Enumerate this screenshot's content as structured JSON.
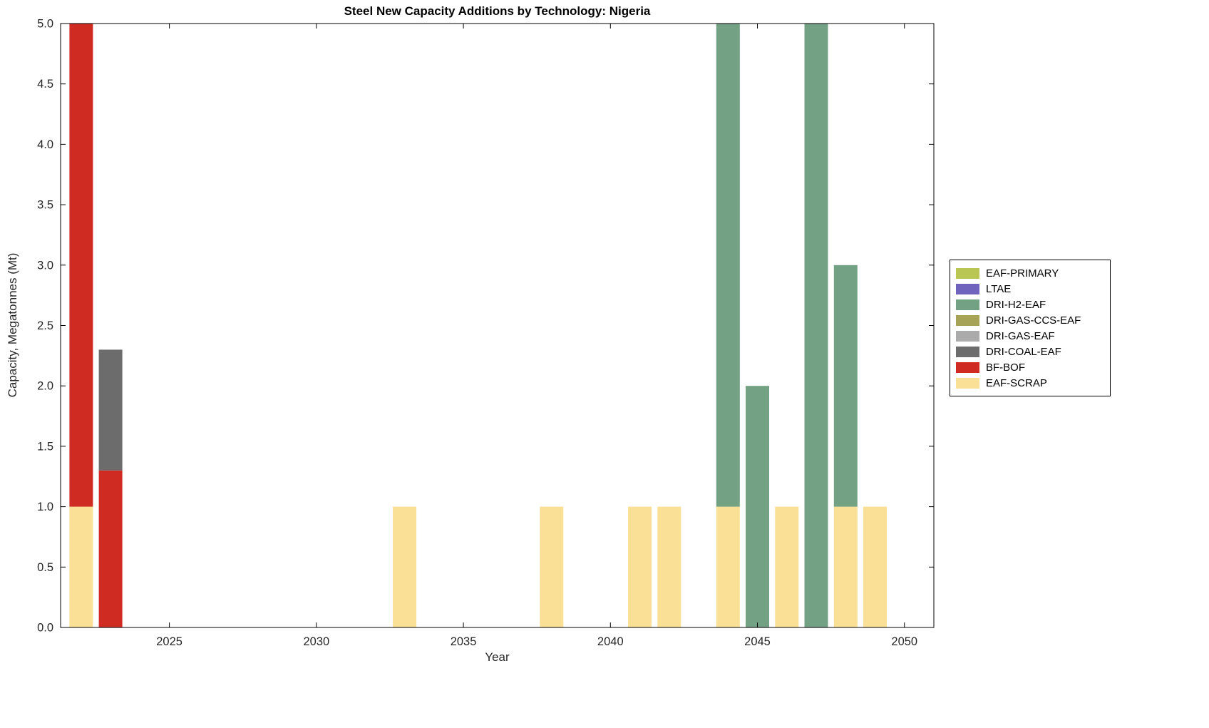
{
  "chart_data": {
    "type": "bar",
    "stacked": true,
    "title": "Steel New Capacity Additions by Technology: Nigeria",
    "xlabel": "Year",
    "ylabel": "Capacity, Megatonnes (Mt)",
    "xlim": [
      2021.3,
      2051.0
    ],
    "ylim": [
      0,
      5
    ],
    "xticks": [
      2025,
      2030,
      2035,
      2040,
      2045,
      2050
    ],
    "yticks": [
      0,
      0.5,
      1.0,
      1.5,
      2.0,
      2.5,
      3.0,
      3.5,
      4.0,
      4.5,
      5.0
    ],
    "grid": false,
    "bar_width": 0.8,
    "legend_position": "outside-right",
    "series_colors": {
      "EAF-PRIMARY": "#BAC653",
      "LTAE": "#6F63BE",
      "DRI-H2-EAF": "#73A184",
      "DRI-GAS-CCS-EAF": "#A6A356",
      "DRI-GAS-EAF": "#ABABAB",
      "DRI-COAL-EAF": "#6C6C6C",
      "BF-BOF": "#CF2B23",
      "EAF-SCRAP": "#FAE096"
    },
    "legend": [
      {
        "label": "EAF-PRIMARY",
        "color": "#BAC653"
      },
      {
        "label": "LTAE",
        "color": "#6F63BE"
      },
      {
        "label": "DRI-H2-EAF",
        "color": "#73A184"
      },
      {
        "label": "DRI-GAS-CCS-EAF",
        "color": "#A6A356"
      },
      {
        "label": "DRI-GAS-EAF",
        "color": "#ABABAB"
      },
      {
        "label": "DRI-COAL-EAF",
        "color": "#6C6C6C"
      },
      {
        "label": "BF-BOF",
        "color": "#CF2B23"
      },
      {
        "label": "EAF-SCRAP",
        "color": "#FAE096"
      }
    ],
    "bars": [
      {
        "year": 2022,
        "stacks": [
          {
            "series": "EAF-SCRAP",
            "value": 1.0
          },
          {
            "series": "BF-BOF",
            "value": 4.0
          }
        ]
      },
      {
        "year": 2023,
        "stacks": [
          {
            "series": "BF-BOF",
            "value": 1.3
          },
          {
            "series": "DRI-COAL-EAF",
            "value": 1.0
          }
        ]
      },
      {
        "year": 2033,
        "stacks": [
          {
            "series": "EAF-SCRAP",
            "value": 1.0
          }
        ]
      },
      {
        "year": 2038,
        "stacks": [
          {
            "series": "EAF-SCRAP",
            "value": 1.0
          }
        ]
      },
      {
        "year": 2041,
        "stacks": [
          {
            "series": "EAF-SCRAP",
            "value": 1.0
          }
        ]
      },
      {
        "year": 2042,
        "stacks": [
          {
            "series": "EAF-SCRAP",
            "value": 1.0
          }
        ]
      },
      {
        "year": 2044,
        "stacks": [
          {
            "series": "EAF-SCRAP",
            "value": 1.0
          },
          {
            "series": "DRI-H2-EAF",
            "value": 4.0
          }
        ]
      },
      {
        "year": 2045,
        "stacks": [
          {
            "series": "DRI-H2-EAF",
            "value": 2.0
          }
        ]
      },
      {
        "year": 2046,
        "stacks": [
          {
            "series": "EAF-SCRAP",
            "value": 1.0
          }
        ]
      },
      {
        "year": 2047,
        "stacks": [
          {
            "series": "DRI-H2-EAF",
            "value": 5.0
          }
        ]
      },
      {
        "year": 2048,
        "stacks": [
          {
            "series": "EAF-SCRAP",
            "value": 1.0
          },
          {
            "series": "DRI-H2-EAF",
            "value": 2.0
          }
        ]
      },
      {
        "year": 2049,
        "stacks": [
          {
            "series": "EAF-SCRAP",
            "value": 1.0
          }
        ]
      }
    ],
    "axis_color": "#000000",
    "tick_label_color": "#262626"
  }
}
